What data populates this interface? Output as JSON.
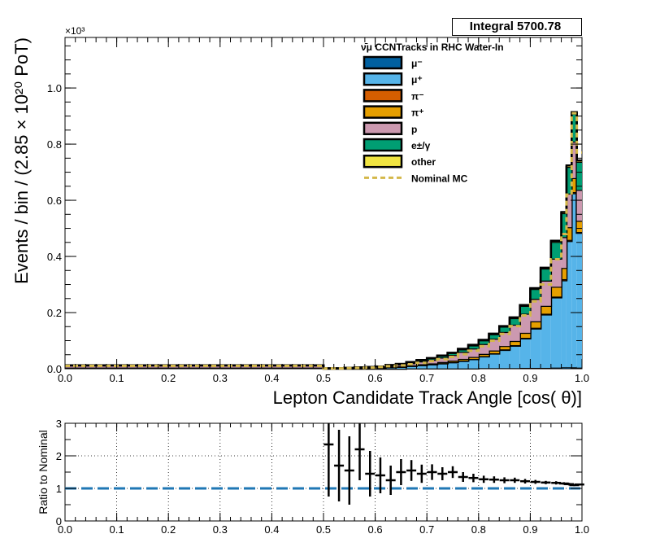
{
  "stats_box": {
    "label": "Integral",
    "value": "5700.78"
  },
  "chart_data": [
    {
      "type": "stacked-histogram",
      "title": "",
      "xlabel": "Lepton Candidate Track Angle [cos(   θ)]",
      "ylabel": "Events / bin / (2.85  × 10²⁰ PoT)",
      "y_exponent_label": "×10³",
      "xlim": [
        0,
        1
      ],
      "ylim": [
        0,
        1.18
      ],
      "y_units_note": "thousands of events",
      "x_ticks": [
        "0.0",
        "0.1",
        "0.2",
        "0.3",
        "0.4",
        "0.5",
        "0.6",
        "0.7",
        "0.8",
        "0.9",
        "1.0"
      ],
      "y_ticks": [
        "0.0",
        "0.2",
        "0.4",
        "0.6",
        "0.8",
        "1.0"
      ],
      "legend": {
        "title": "ν̄μ CCNTracks in RHC Water-In",
        "placement": "top-right",
        "entries": [
          "μ⁻",
          "μ⁺",
          "π⁻",
          "π⁺",
          "p",
          "e±/γ",
          "other",
          "Nominal MC"
        ]
      },
      "bin_edges": [
        0.0,
        0.5,
        0.52,
        0.54,
        0.56,
        0.58,
        0.6,
        0.62,
        0.64,
        0.66,
        0.68,
        0.7,
        0.72,
        0.74,
        0.76,
        0.78,
        0.8,
        0.82,
        0.84,
        0.86,
        0.88,
        0.9,
        0.92,
        0.94,
        0.96,
        0.97,
        0.98,
        0.99,
        1.0
      ],
      "series": [
        {
          "name": "μ⁻",
          "color": "#0060a0",
          "values": [
            0.004,
            0.0,
            0.0,
            0.0,
            0.0,
            0.0,
            0.0,
            0.0,
            0.0,
            0.001,
            0.001,
            0.001,
            0.001,
            0.001,
            0.001,
            0.001,
            0.002,
            0.002,
            0.002,
            0.002,
            0.003,
            0.003,
            0.003,
            0.004,
            0.005,
            0.005,
            0.005,
            0.004
          ]
        },
        {
          "name": "μ⁺",
          "color": "#56b4e9",
          "values": [
            0.0,
            0.001,
            0.001,
            0.001,
            0.002,
            0.002,
            0.003,
            0.005,
            0.007,
            0.009,
            0.012,
            0.015,
            0.018,
            0.022,
            0.027,
            0.033,
            0.042,
            0.052,
            0.065,
            0.08,
            0.105,
            0.14,
            0.19,
            0.25,
            0.31,
            0.45,
            0.62,
            0.48
          ]
        },
        {
          "name": "π⁻",
          "color": "#d55e00",
          "values": [
            0.0,
            0.0,
            0.0,
            0.0,
            0.0,
            0.0,
            0.0,
            0.0,
            0.0,
            0.0,
            0.0,
            0.0,
            0.001,
            0.001,
            0.001,
            0.001,
            0.001,
            0.001,
            0.002,
            0.002,
            0.002,
            0.003,
            0.003,
            0.003,
            0.004,
            0.004,
            0.004,
            0.003
          ]
        },
        {
          "name": "π⁺",
          "color": "#e69f00",
          "values": [
            0.0,
            0.0,
            0.0,
            0.001,
            0.001,
            0.001,
            0.001,
            0.002,
            0.002,
            0.002,
            0.003,
            0.003,
            0.004,
            0.005,
            0.006,
            0.007,
            0.008,
            0.01,
            0.012,
            0.015,
            0.018,
            0.023,
            0.028,
            0.035,
            0.04,
            0.045,
            0.05,
            0.04
          ]
        },
        {
          "name": "p",
          "color": "#cc99b0",
          "values": [
            0.008,
            0.0,
            0.0,
            0.001,
            0.001,
            0.002,
            0.003,
            0.004,
            0.006,
            0.008,
            0.01,
            0.013,
            0.016,
            0.02,
            0.025,
            0.03,
            0.035,
            0.042,
            0.05,
            0.058,
            0.068,
            0.08,
            0.09,
            0.1,
            0.11,
            0.12,
            0.13,
            0.11
          ]
        },
        {
          "name": "e±/γ",
          "color": "#009e73",
          "values": [
            0.0,
            0.0,
            0.0,
            0.0,
            0.001,
            0.001,
            0.001,
            0.002,
            0.002,
            0.003,
            0.004,
            0.005,
            0.006,
            0.007,
            0.009,
            0.011,
            0.013,
            0.016,
            0.019,
            0.023,
            0.028,
            0.035,
            0.043,
            0.06,
            0.085,
            0.095,
            0.1,
            0.1
          ]
        },
        {
          "name": "other",
          "color": "#f0e442",
          "values": [
            0.0,
            0.0,
            0.0,
            0.0,
            0.0,
            0.0,
            0.0,
            0.0,
            0.0,
            0.001,
            0.001,
            0.001,
            0.001,
            0.001,
            0.002,
            0.002,
            0.002,
            0.002,
            0.002,
            0.003,
            0.003,
            0.003,
            0.003,
            0.004,
            0.004,
            0.005,
            0.005,
            0.005
          ]
        }
      ],
      "nominal_mc": {
        "name": "Nominal MC",
        "color": "#d4b84a",
        "values": [
          0.01,
          0.001,
          0.001,
          0.002,
          0.003,
          0.004,
          0.006,
          0.009,
          0.012,
          0.016,
          0.021,
          0.027,
          0.034,
          0.042,
          0.052,
          0.064,
          0.08,
          0.1,
          0.124,
          0.152,
          0.19,
          0.24,
          0.3,
          0.39,
          0.48,
          0.62,
          0.91,
          0.77
        ]
      }
    },
    {
      "type": "ratio",
      "title": "",
      "xlabel": "",
      "ylabel": "Ratio to Nominal",
      "xlim": [
        0,
        1
      ],
      "ylim": [
        0,
        3
      ],
      "grid": true,
      "x_ticks": [
        "0.0",
        "0.1",
        "0.2",
        "0.3",
        "0.4",
        "0.5",
        "0.6",
        "0.7",
        "0.8",
        "0.9",
        "1.0"
      ],
      "y_ticks": [
        "0",
        "1",
        "2",
        "3"
      ],
      "reference_line": 1,
      "points": [
        {
          "x": 0.51,
          "y": 2.35,
          "err": 1.6
        },
        {
          "x": 0.53,
          "y": 1.7,
          "err": 1.1
        },
        {
          "x": 0.55,
          "y": 1.55,
          "err": 1.05
        },
        {
          "x": 0.57,
          "y": 2.2,
          "err": 0.95
        },
        {
          "x": 0.59,
          "y": 1.45,
          "err": 0.7
        },
        {
          "x": 0.61,
          "y": 1.4,
          "err": 0.55
        },
        {
          "x": 0.63,
          "y": 1.25,
          "err": 0.45
        },
        {
          "x": 0.65,
          "y": 1.5,
          "err": 0.4
        },
        {
          "x": 0.67,
          "y": 1.55,
          "err": 0.32
        },
        {
          "x": 0.69,
          "y": 1.45,
          "err": 0.28
        },
        {
          "x": 0.71,
          "y": 1.5,
          "err": 0.24
        },
        {
          "x": 0.73,
          "y": 1.45,
          "err": 0.2
        },
        {
          "x": 0.75,
          "y": 1.5,
          "err": 0.18
        },
        {
          "x": 0.77,
          "y": 1.35,
          "err": 0.15
        },
        {
          "x": 0.79,
          "y": 1.32,
          "err": 0.13
        },
        {
          "x": 0.81,
          "y": 1.28,
          "err": 0.11
        },
        {
          "x": 0.83,
          "y": 1.27,
          "err": 0.1
        },
        {
          "x": 0.85,
          "y": 1.25,
          "err": 0.09
        },
        {
          "x": 0.87,
          "y": 1.25,
          "err": 0.08
        },
        {
          "x": 0.89,
          "y": 1.22,
          "err": 0.07
        },
        {
          "x": 0.91,
          "y": 1.2,
          "err": 0.06
        },
        {
          "x": 0.93,
          "y": 1.18,
          "err": 0.05
        },
        {
          "x": 0.95,
          "y": 1.17,
          "err": 0.05
        },
        {
          "x": 0.965,
          "y": 1.15,
          "err": 0.04
        },
        {
          "x": 0.975,
          "y": 1.13,
          "err": 0.04
        },
        {
          "x": 0.985,
          "y": 1.1,
          "err": 0.03
        },
        {
          "x": 0.995,
          "y": 1.12,
          "err": 0.03
        }
      ]
    }
  ]
}
